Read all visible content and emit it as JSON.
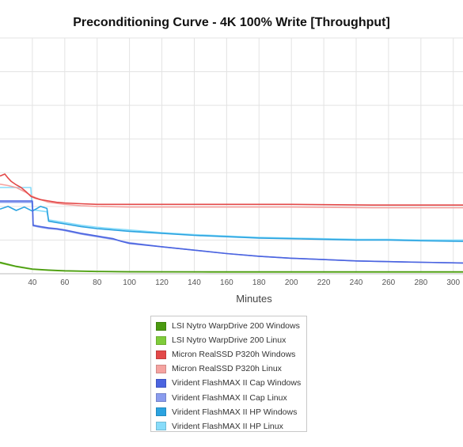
{
  "chart_data": {
    "type": "line",
    "title": "Preconditioning Curve - 4K 100% Write [Throughput]",
    "xlabel": "Minutes",
    "ylabel": "",
    "xlim": [
      20,
      306
    ],
    "xticks": [
      40,
      60,
      80,
      100,
      120,
      140,
      160,
      180,
      200,
      220,
      240,
      260,
      280,
      300
    ],
    "ylim": [
      0,
      350
    ],
    "grid": true,
    "legend_position": "bottom-center",
    "series": [
      {
        "name": "LSI Nytro WarpDrive 200 Windows",
        "color": "#4a9a10",
        "x": [
          20,
          30,
          40,
          50,
          60,
          80,
          100,
          150,
          200,
          306
        ],
        "y": [
          17,
          11,
          7,
          5.5,
          4.5,
          3.5,
          3,
          2.8,
          2.8,
          2.8
        ]
      },
      {
        "name": "LSI Nytro WarpDrive 200 Linux",
        "color": "#7fcc3a",
        "x": [
          20,
          30,
          40,
          50,
          60,
          80,
          100,
          150,
          200,
          306
        ],
        "y": [
          16,
          10.5,
          6.5,
          5,
          4,
          3.2,
          2.7,
          2.5,
          2.5,
          2.5
        ]
      },
      {
        "name": "Micron RealSSD P320h Windows",
        "color": "#e34848",
        "x": [
          20,
          23,
          25,
          27,
          30,
          33,
          36,
          39,
          42,
          45,
          50,
          55,
          60,
          70,
          80,
          100,
          150,
          200,
          250,
          306
        ],
        "y": [
          145,
          148,
          142,
          137,
          132,
          128,
          122,
          115,
          112,
          110,
          108,
          106,
          105,
          104,
          103,
          103,
          103,
          103,
          102,
          102
        ]
      },
      {
        "name": "Micron RealSSD P320h Linux",
        "color": "#f5a3a0",
        "x": [
          20,
          25,
          30,
          35,
          40,
          45,
          50,
          60,
          70,
          80,
          100,
          150,
          200,
          250,
          306
        ],
        "y": [
          133,
          131,
          128,
          122,
          115,
          110,
          106,
          103,
          101,
          100,
          99,
          99,
          99,
          98,
          98
        ]
      },
      {
        "name": "Virident FlashMAX II Cap Windows",
        "color": "#4b64e0",
        "x": [
          20,
          35,
          40,
          40.5,
          45,
          50,
          55,
          60,
          70,
          80,
          90,
          95,
          100,
          120,
          140,
          160,
          180,
          200,
          220,
          240,
          260,
          280,
          306
        ],
        "y": [
          108,
          108,
          108,
          72,
          70,
          68,
          67,
          65,
          60,
          56,
          52,
          48,
          45,
          40,
          35,
          30,
          26,
          23,
          21,
          19,
          18,
          17,
          16
        ]
      },
      {
        "name": "Virident FlashMAX II Cap Linux",
        "color": "#8a9cee",
        "x": [
          20,
          35,
          40,
          40.5,
          45,
          50,
          55,
          60,
          70,
          80,
          90,
          100,
          120,
          140,
          160,
          180,
          200,
          220,
          240,
          260,
          280,
          306
        ],
        "y": [
          106,
          106,
          106,
          71,
          69,
          67,
          66,
          64,
          59,
          55,
          51,
          46,
          40,
          35,
          30,
          26,
          23,
          21,
          19,
          18,
          17,
          16
        ]
      },
      {
        "name": "Virident FlashMAX II HP Windows",
        "color": "#2ba3e0",
        "x": [
          20,
          25,
          30,
          35,
          40,
          45,
          49,
          50,
          55,
          60,
          70,
          80,
          90,
          100,
          120,
          140,
          160,
          180,
          200,
          220,
          240,
          260,
          280,
          306
        ],
        "y": [
          96,
          100,
          94,
          99,
          93,
          100,
          97,
          78,
          76,
          74,
          70,
          67,
          65,
          63,
          60,
          57,
          55,
          53,
          52,
          51,
          50,
          50,
          49,
          48
        ]
      },
      {
        "name": "Virident FlashMAX II HP Linux",
        "color": "#87dcfa",
        "x": [
          20,
          35,
          39,
          40,
          49,
          50,
          55,
          60,
          70,
          80,
          90,
          100,
          120,
          140,
          160,
          180,
          200,
          220,
          240,
          260,
          280,
          306
        ],
        "y": [
          128,
          128,
          128,
          95,
          92,
          80,
          78,
          76,
          72,
          69,
          67,
          65,
          61,
          58,
          56,
          54,
          53,
          52,
          51,
          51,
          50,
          50
        ]
      }
    ]
  }
}
